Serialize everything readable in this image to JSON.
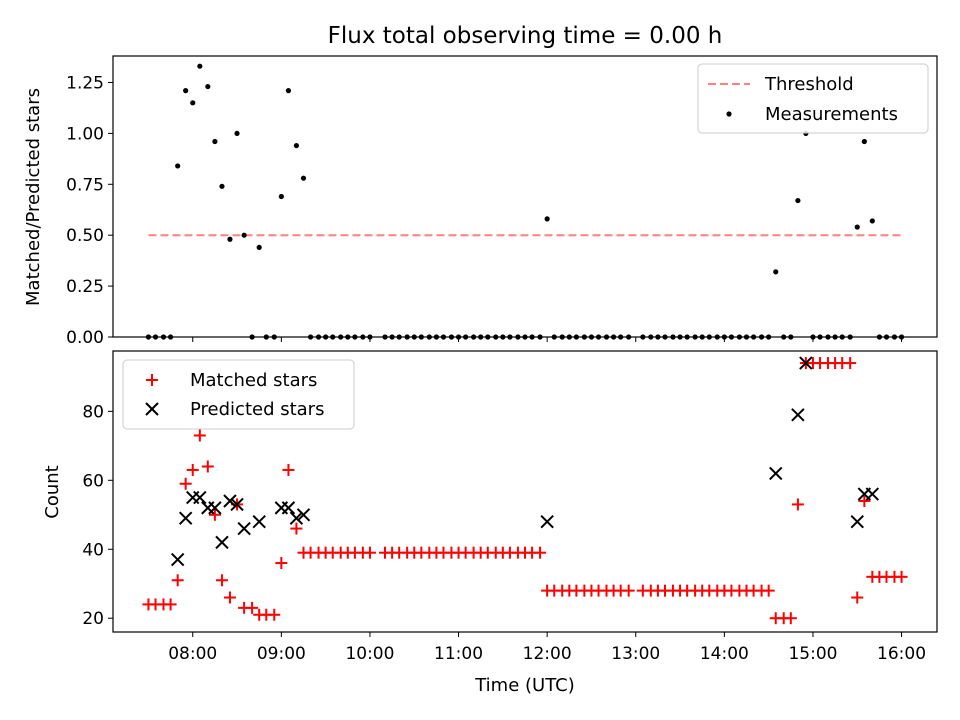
{
  "figure_title": "Flux total observing time = 0.00 h",
  "chart_data": [
    {
      "type": "scatter",
      "ylabel": "Matched/Predicted stars",
      "ylim": [
        0,
        1.38
      ],
      "yticks": [
        0.0,
        0.25,
        0.5,
        0.75,
        1.0,
        1.25
      ],
      "ytick_labels": [
        "0.00",
        "0.25",
        "0.50",
        "0.75",
        "1.00",
        "1.25"
      ],
      "threshold": {
        "name": "Threshold",
        "y": 0.5,
        "x_range": [
          7.5,
          16.0
        ],
        "color": "#ff8080",
        "style": "dashed"
      },
      "series": [
        {
          "name": "Measurements",
          "marker": "dot",
          "color": "#000000",
          "points": [
            [
              7.5,
              0
            ],
            [
              7.58,
              0
            ],
            [
              7.67,
              0
            ],
            [
              7.75,
              0
            ],
            [
              7.83,
              0.84
            ],
            [
              7.92,
              1.21
            ],
            [
              8.0,
              1.15
            ],
            [
              8.08,
              1.33
            ],
            [
              8.17,
              1.23
            ],
            [
              8.25,
              0.96
            ],
            [
              8.33,
              0.74
            ],
            [
              8.42,
              0.48
            ],
            [
              8.5,
              1.0
            ],
            [
              8.58,
              0.5
            ],
            [
              8.67,
              0
            ],
            [
              8.75,
              0.44
            ],
            [
              8.83,
              0
            ],
            [
              8.92,
              0
            ],
            [
              9.0,
              0.69
            ],
            [
              9.08,
              1.21
            ],
            [
              9.17,
              0.94
            ],
            [
              9.25,
              0.78
            ],
            [
              9.33,
              0
            ],
            [
              9.42,
              0
            ],
            [
              9.5,
              0
            ],
            [
              9.58,
              0
            ],
            [
              9.67,
              0
            ],
            [
              9.75,
              0
            ],
            [
              9.83,
              0
            ],
            [
              9.92,
              0
            ],
            [
              10.0,
              0
            ],
            [
              10.17,
              0
            ],
            [
              10.25,
              0
            ],
            [
              10.33,
              0
            ],
            [
              10.42,
              0
            ],
            [
              10.5,
              0
            ],
            [
              10.58,
              0
            ],
            [
              10.67,
              0
            ],
            [
              10.75,
              0
            ],
            [
              10.83,
              0
            ],
            [
              10.92,
              0
            ],
            [
              11.0,
              0
            ],
            [
              11.08,
              0
            ],
            [
              11.17,
              0
            ],
            [
              11.25,
              0
            ],
            [
              11.33,
              0
            ],
            [
              11.42,
              0
            ],
            [
              11.5,
              0
            ],
            [
              11.58,
              0
            ],
            [
              11.67,
              0
            ],
            [
              11.75,
              0
            ],
            [
              11.83,
              0
            ],
            [
              11.92,
              0
            ],
            [
              12.0,
              0.58
            ],
            [
              12.08,
              0
            ],
            [
              12.17,
              0
            ],
            [
              12.25,
              0
            ],
            [
              12.33,
              0
            ],
            [
              12.42,
              0
            ],
            [
              12.5,
              0
            ],
            [
              12.58,
              0
            ],
            [
              12.67,
              0
            ],
            [
              12.75,
              0
            ],
            [
              12.83,
              0
            ],
            [
              12.92,
              0
            ],
            [
              13.08,
              0
            ],
            [
              13.17,
              0
            ],
            [
              13.25,
              0
            ],
            [
              13.33,
              0
            ],
            [
              13.42,
              0
            ],
            [
              13.5,
              0
            ],
            [
              13.58,
              0
            ],
            [
              13.67,
              0
            ],
            [
              13.75,
              0
            ],
            [
              13.83,
              0
            ],
            [
              13.92,
              0
            ],
            [
              14.0,
              0
            ],
            [
              14.08,
              0
            ],
            [
              14.17,
              0
            ],
            [
              14.25,
              0
            ],
            [
              14.33,
              0
            ],
            [
              14.42,
              0
            ],
            [
              14.5,
              0
            ],
            [
              14.58,
              0.32
            ],
            [
              14.67,
              0
            ],
            [
              14.75,
              0
            ],
            [
              14.83,
              0.67
            ],
            [
              14.92,
              1.0
            ],
            [
              15.0,
              0
            ],
            [
              15.08,
              0
            ],
            [
              15.17,
              0
            ],
            [
              15.25,
              0
            ],
            [
              15.33,
              0
            ],
            [
              15.42,
              0
            ],
            [
              15.5,
              0.54
            ],
            [
              15.58,
              0.96
            ],
            [
              15.67,
              0.57
            ],
            [
              15.75,
              0
            ],
            [
              15.83,
              0
            ],
            [
              15.92,
              0
            ],
            [
              16.0,
              0
            ]
          ]
        }
      ],
      "legend_placement": "top-right"
    },
    {
      "type": "scatter",
      "xlabel": "Time (UTC)",
      "ylabel": "Count",
      "xlim": [
        7.1,
        16.4
      ],
      "ylim": [
        16,
        97.5
      ],
      "xticks": [
        8,
        9,
        10,
        11,
        12,
        13,
        14,
        15,
        16
      ],
      "xtick_labels": [
        "08:00",
        "09:00",
        "10:00",
        "11:00",
        "12:00",
        "13:00",
        "14:00",
        "15:00",
        "16:00"
      ],
      "yticks": [
        20,
        40,
        60,
        80
      ],
      "ytick_labels": [
        "20",
        "40",
        "60",
        "80"
      ],
      "series": [
        {
          "name": "Matched stars",
          "marker": "plus",
          "color": "#ff0000",
          "points": [
            [
              7.5,
              24
            ],
            [
              7.58,
              24
            ],
            [
              7.67,
              24
            ],
            [
              7.75,
              24
            ],
            [
              7.83,
              31
            ],
            [
              7.92,
              59
            ],
            [
              8.0,
              63
            ],
            [
              8.08,
              73
            ],
            [
              8.17,
              64
            ],
            [
              8.25,
              50
            ],
            [
              8.33,
              31
            ],
            [
              8.42,
              26
            ],
            [
              8.5,
              53
            ],
            [
              8.58,
              23
            ],
            [
              8.67,
              23
            ],
            [
              8.75,
              21
            ],
            [
              8.83,
              21
            ],
            [
              8.92,
              21
            ],
            [
              9.0,
              36
            ],
            [
              9.08,
              63
            ],
            [
              9.17,
              46
            ],
            [
              9.25,
              39
            ],
            [
              9.33,
              39
            ],
            [
              9.42,
              39
            ],
            [
              9.5,
              39
            ],
            [
              9.58,
              39
            ],
            [
              9.67,
              39
            ],
            [
              9.75,
              39
            ],
            [
              9.83,
              39
            ],
            [
              9.92,
              39
            ],
            [
              10.0,
              39
            ],
            [
              10.17,
              39
            ],
            [
              10.25,
              39
            ],
            [
              10.33,
              39
            ],
            [
              10.42,
              39
            ],
            [
              10.5,
              39
            ],
            [
              10.58,
              39
            ],
            [
              10.67,
              39
            ],
            [
              10.75,
              39
            ],
            [
              10.83,
              39
            ],
            [
              10.92,
              39
            ],
            [
              11.0,
              39
            ],
            [
              11.08,
              39
            ],
            [
              11.17,
              39
            ],
            [
              11.25,
              39
            ],
            [
              11.33,
              39
            ],
            [
              11.42,
              39
            ],
            [
              11.5,
              39
            ],
            [
              11.58,
              39
            ],
            [
              11.67,
              39
            ],
            [
              11.75,
              39
            ],
            [
              11.83,
              39
            ],
            [
              11.92,
              39
            ],
            [
              12.0,
              28
            ],
            [
              12.08,
              28
            ],
            [
              12.17,
              28
            ],
            [
              12.25,
              28
            ],
            [
              12.33,
              28
            ],
            [
              12.42,
              28
            ],
            [
              12.5,
              28
            ],
            [
              12.58,
              28
            ],
            [
              12.67,
              28
            ],
            [
              12.75,
              28
            ],
            [
              12.83,
              28
            ],
            [
              12.92,
              28
            ],
            [
              13.08,
              28
            ],
            [
              13.17,
              28
            ],
            [
              13.25,
              28
            ],
            [
              13.33,
              28
            ],
            [
              13.42,
              28
            ],
            [
              13.5,
              28
            ],
            [
              13.58,
              28
            ],
            [
              13.67,
              28
            ],
            [
              13.75,
              28
            ],
            [
              13.83,
              28
            ],
            [
              13.92,
              28
            ],
            [
              14.0,
              28
            ],
            [
              14.08,
              28
            ],
            [
              14.17,
              28
            ],
            [
              14.25,
              28
            ],
            [
              14.33,
              28
            ],
            [
              14.42,
              28
            ],
            [
              14.5,
              28
            ],
            [
              14.58,
              20
            ],
            [
              14.67,
              20
            ],
            [
              14.75,
              20
            ],
            [
              14.83,
              53
            ],
            [
              14.92,
              94
            ],
            [
              15.0,
              94
            ],
            [
              15.08,
              94
            ],
            [
              15.17,
              94
            ],
            [
              15.25,
              94
            ],
            [
              15.33,
              94
            ],
            [
              15.42,
              94
            ],
            [
              15.5,
              26
            ],
            [
              15.58,
              54
            ],
            [
              15.67,
              32
            ],
            [
              15.75,
              32
            ],
            [
              15.83,
              32
            ],
            [
              15.92,
              32
            ],
            [
              16.0,
              32
            ]
          ]
        },
        {
          "name": "Predicted stars",
          "marker": "x",
          "color": "#000000",
          "points": [
            [
              7.83,
              37
            ],
            [
              7.92,
              49
            ],
            [
              8.0,
              55
            ],
            [
              8.08,
              55
            ],
            [
              8.17,
              52
            ],
            [
              8.25,
              52
            ],
            [
              8.33,
              42
            ],
            [
              8.42,
              54
            ],
            [
              8.5,
              53
            ],
            [
              8.58,
              46
            ],
            [
              8.75,
              48
            ],
            [
              9.0,
              52
            ],
            [
              9.08,
              52
            ],
            [
              9.17,
              49
            ],
            [
              9.25,
              50
            ],
            [
              12.0,
              48
            ],
            [
              14.58,
              62
            ],
            [
              14.83,
              79
            ],
            [
              14.92,
              94
            ],
            [
              15.5,
              48
            ],
            [
              15.58,
              56
            ],
            [
              15.67,
              56
            ]
          ]
        }
      ],
      "legend_placement": "top-left"
    }
  ]
}
